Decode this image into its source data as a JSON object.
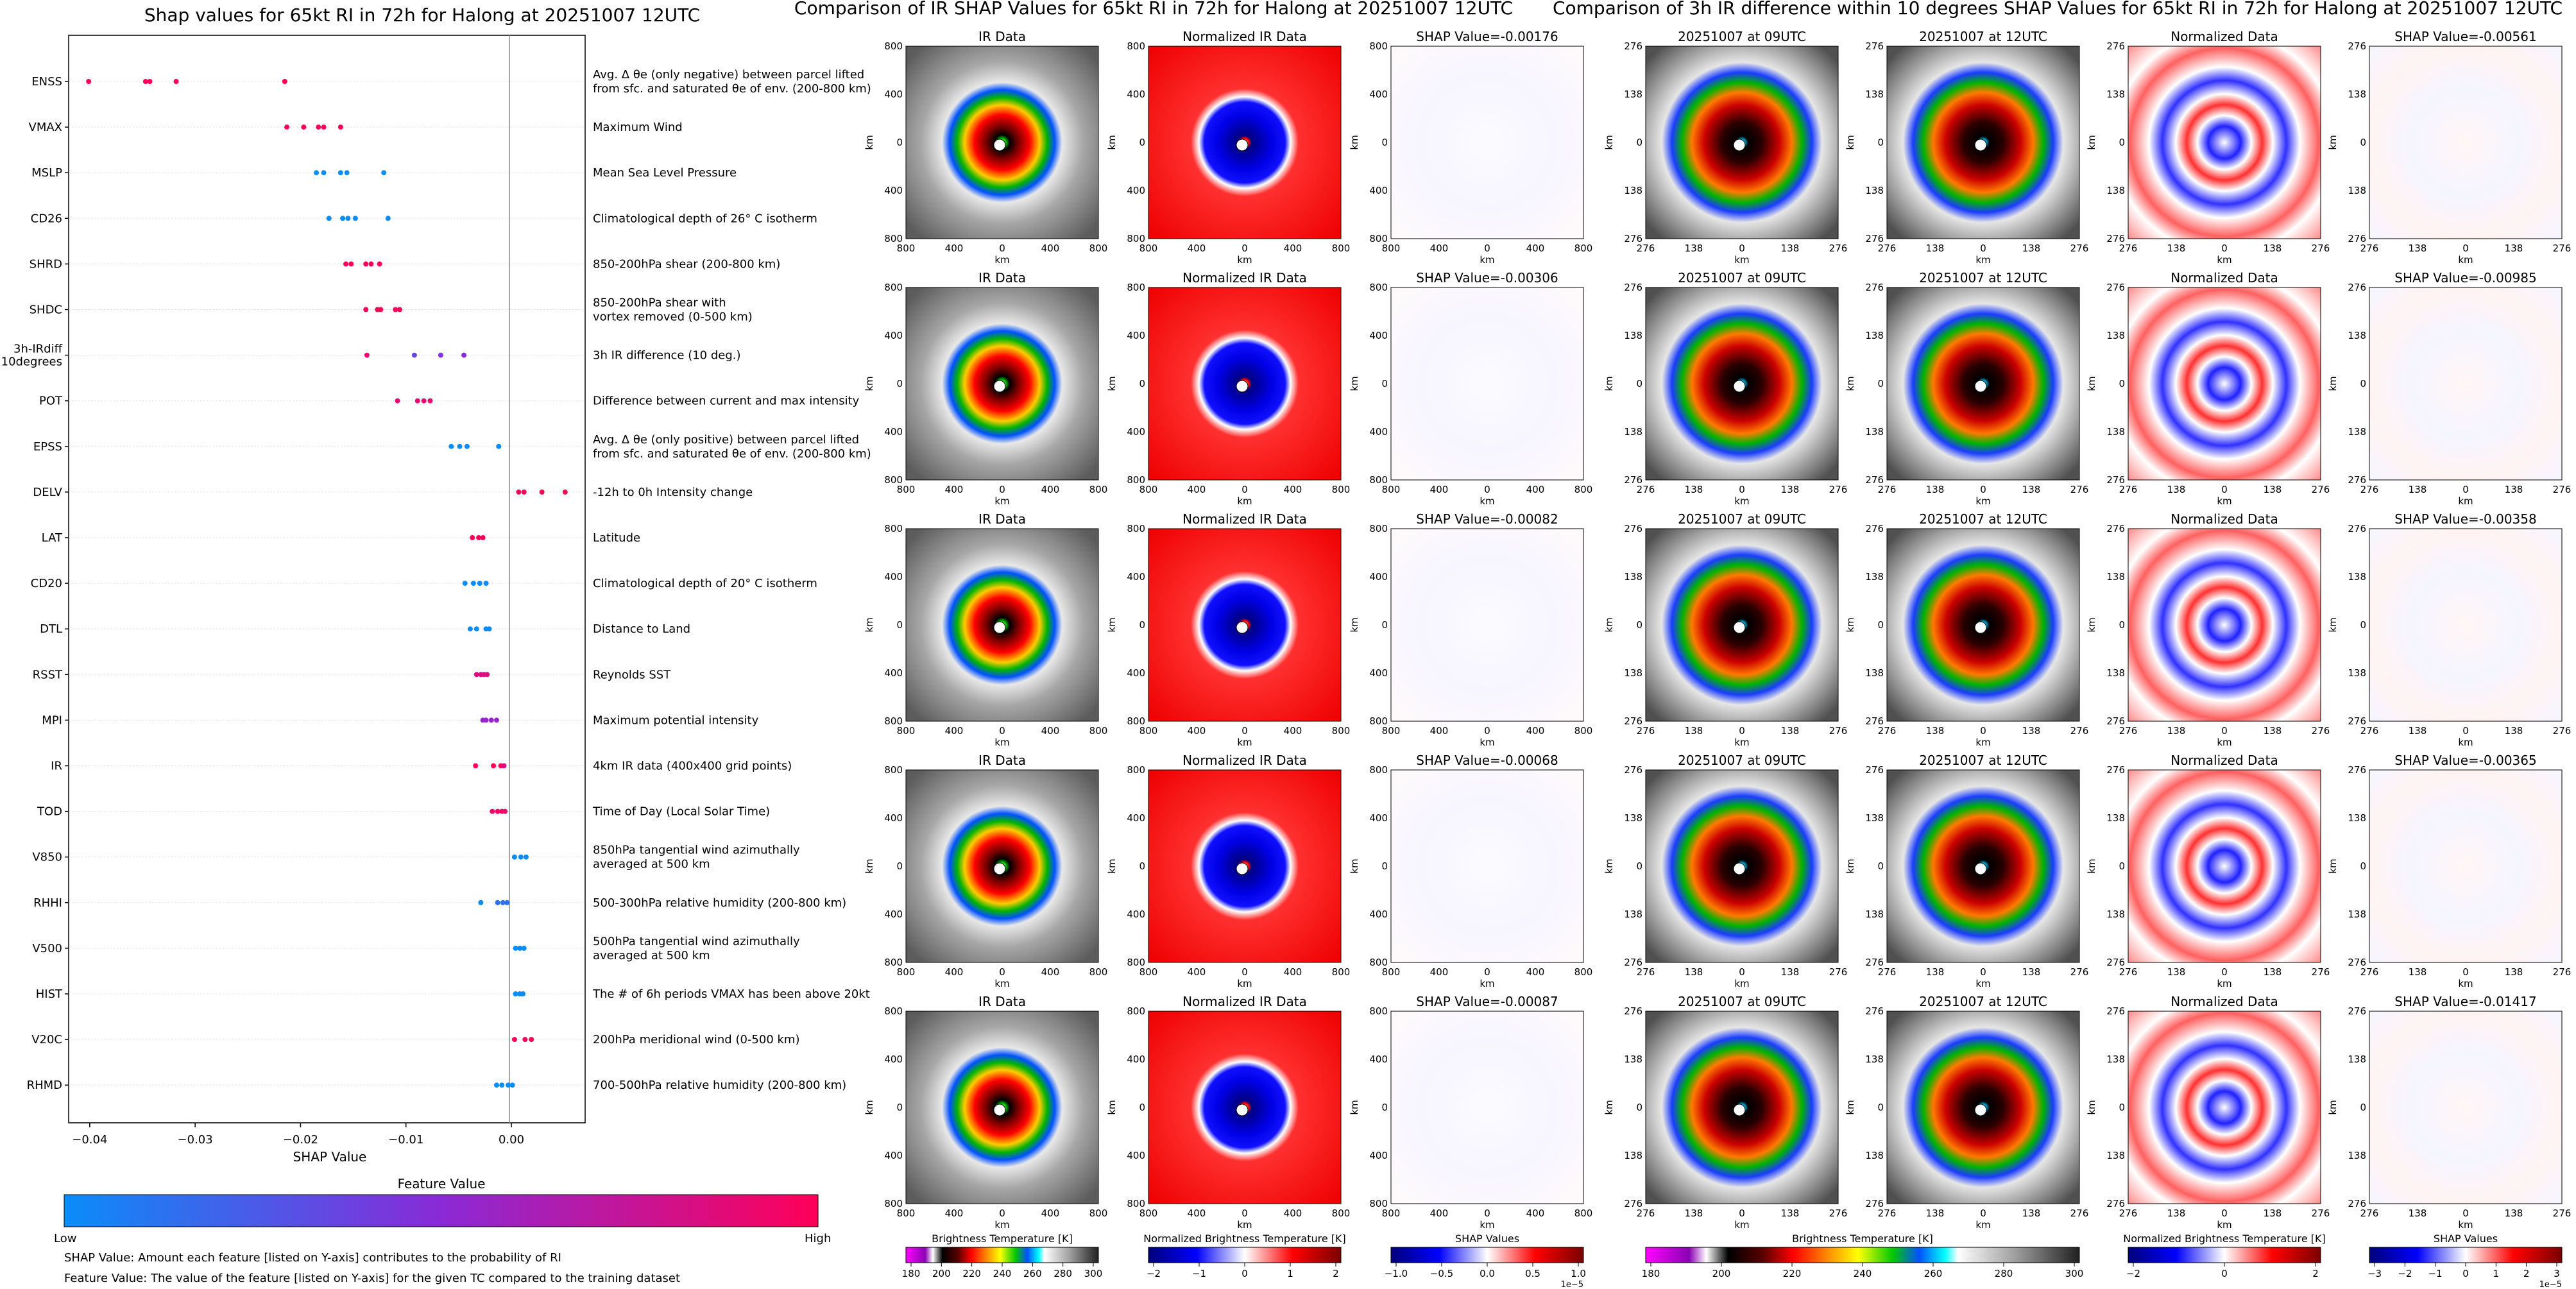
{
  "shap_summary": {
    "title": "Shap values for 65kt RI in 72h for Halong at 20251007 12UTC",
    "xlabel": "SHAP Value",
    "legend_title": "Feature Value",
    "legend_low": "Low",
    "legend_high": "High",
    "notes": [
      "SHAP Value: Amount each feature [listed on Y-axis] contributes to the probability of RI",
      "Feature Value: The value of the feature [listed on Y-axis] for the given TC compared to the training dataset"
    ]
  },
  "ir_panel": {
    "title": "Comparison of IR SHAP Values for 65kt RI in 72h for Halong at 20251007 12UTC",
    "col1_title": "IR Data",
    "col2_title": "Normalized IR Data",
    "shap_values": [
      "SHAP Value=-0.00176",
      "SHAP Value=-0.00306",
      "SHAP Value=-0.00082",
      "SHAP Value=-0.00068",
      "SHAP Value=-0.00087"
    ],
    "xticks": [
      "800",
      "400",
      "0",
      "400",
      "800"
    ],
    "yticks": [
      "800",
      "400",
      "0",
      "400",
      "800"
    ],
    "axis_label": "km",
    "cbar1_label": "Brightness Temperature [K]",
    "cbar1_ticks": [
      "180",
      "200",
      "220",
      "240",
      "260",
      "280",
      "300"
    ],
    "cbar2_label": "Normalized Brightness Temperature [K]",
    "cbar2_ticks": [
      "−2",
      "−1",
      "0",
      "1",
      "2"
    ],
    "cbar3_label": "SHAP Values",
    "cbar3_ticks": [
      "−1.0",
      "−0.5",
      "0.0",
      "0.5",
      "1.0"
    ],
    "cbar3_exp": "1e−5"
  },
  "diff_panel": {
    "title": "Comparison of 3h IR difference within 10 degrees SHAP Values for 65kt RI in 72h for Halong at 20251007 12UTC",
    "col1_title": "20251007 at 09UTC",
    "col2_title": "20251007 at 12UTC",
    "col3_title": "Normalized Data",
    "shap_values": [
      "SHAP Value=-0.00561",
      "SHAP Value=-0.00985",
      "SHAP Value=-0.00358",
      "SHAP Value=-0.00365",
      "SHAP Value=-0.01417"
    ],
    "xticks": [
      "276",
      "138",
      "0",
      "138",
      "276"
    ],
    "yticks": [
      "276",
      "138",
      "0",
      "138",
      "276"
    ],
    "axis_label": "km",
    "cbar1_label": "Brightness Temperature [K]",
    "cbar1_ticks": [
      "180",
      "200",
      "220",
      "240",
      "260",
      "280",
      "300"
    ],
    "cbar2_label": "Normalized Brightness Temperature [K]",
    "cbar2_ticks": [
      "−2",
      "0",
      "2"
    ],
    "cbar3_label": "SHAP Values",
    "cbar3_ticks": [
      "−3",
      "−2",
      "−1",
      "0",
      "1",
      "2",
      "3"
    ],
    "cbar3_exp": "1e−5"
  },
  "colors": {
    "low": "#0a8cfa",
    "mid": "#8a2ad6",
    "high": "#ff0058"
  },
  "chart_data": {
    "type": "scatter",
    "xlim": [
      -0.042,
      0.007
    ],
    "xticks": [
      -0.04,
      -0.03,
      -0.02,
      -0.01,
      0.0
    ],
    "xtick_labels": [
      "−0.04",
      "−0.03",
      "−0.02",
      "−0.01",
      "0.00"
    ],
    "features": [
      {
        "code": "ENSS",
        "desc": [
          "Avg. Δ θe (only negative) between parcel lifted",
          "from sfc. and saturated θe of env. (200-800 km)"
        ],
        "shap": [
          -0.0401,
          -0.0347,
          -0.0343,
          -0.0318,
          -0.0215
        ],
        "fv": [
          1.0,
          1.0,
          1.0,
          1.0,
          1.0
        ]
      },
      {
        "code": "VMAX",
        "desc": [
          "Maximum Wind"
        ],
        "shap": [
          -0.0213,
          -0.0197,
          -0.0183,
          -0.0178,
          -0.0162
        ],
        "fv": [
          1.0,
          1.0,
          1.0,
          1.0,
          1.0
        ]
      },
      {
        "code": "MSLP",
        "desc": [
          "Mean Sea Level Pressure"
        ],
        "shap": [
          -0.0185,
          -0.0178,
          -0.0162,
          -0.0156,
          -0.0121
        ],
        "fv": [
          0.0,
          0.0,
          0.0,
          0.0,
          0.0
        ]
      },
      {
        "code": "CD26",
        "desc": [
          "Climatological depth of 26° C isotherm"
        ],
        "shap": [
          -0.0173,
          -0.016,
          -0.0155,
          -0.0148,
          -0.0117
        ],
        "fv": [
          0.0,
          0.0,
          0.0,
          0.0,
          0.0
        ]
      },
      {
        "code": "SHRD",
        "desc": [
          "850-200hPa shear (200-800 km)"
        ],
        "shap": [
          -0.0157,
          -0.0152,
          -0.0138,
          -0.0133,
          -0.0125
        ],
        "fv": [
          1.0,
          1.0,
          1.0,
          1.0,
          1.0
        ]
      },
      {
        "code": "SHDC",
        "desc": [
          "850-200hPa shear with",
          "vortex removed (0-500 km)"
        ],
        "shap": [
          -0.0138,
          -0.0127,
          -0.0124,
          -0.011,
          -0.0106
        ],
        "fv": [
          1.0,
          1.0,
          1.0,
          1.0,
          1.0
        ]
      },
      {
        "code": "3h-IRdiff 10degrees",
        "desc": [
          "3h IR difference (10 deg.)"
        ],
        "shap": [
          -0.0137,
          -0.0092,
          -0.0067,
          -0.0045
        ],
        "fv": [
          0.9,
          0.35,
          0.45,
          0.5
        ]
      },
      {
        "code": "POT",
        "desc": [
          "Difference between current and max intensity"
        ],
        "shap": [
          -0.0108,
          -0.0089,
          -0.0083,
          -0.0077
        ],
        "fv": [
          0.9,
          0.9,
          0.9,
          0.9
        ]
      },
      {
        "code": "EPSS",
        "desc": [
          "Avg. Δ θe (only positive) between parcel lifted",
          "from sfc. and saturated θe of env. (200-800 km)"
        ],
        "shap": [
          -0.0057,
          -0.0049,
          -0.0042,
          -0.0012
        ],
        "fv": [
          0.0,
          0.0,
          0.0,
          0.0
        ]
      },
      {
        "code": "DELV",
        "desc": [
          "-12h to 0h Intensity change"
        ],
        "shap": [
          0.0007,
          0.0012,
          0.0029,
          0.0051
        ],
        "fv": [
          1.0,
          1.0,
          1.0,
          1.0
        ]
      },
      {
        "code": "LAT",
        "desc": [
          "Latitude"
        ],
        "shap": [
          -0.0037,
          -0.0031,
          -0.0027
        ],
        "fv": [
          1.0,
          1.0,
          1.0
        ]
      },
      {
        "code": "CD20",
        "desc": [
          "Climatological depth of 20° C isotherm"
        ],
        "shap": [
          -0.0044,
          -0.0036,
          -0.003,
          -0.0024
        ],
        "fv": [
          0.0,
          0.0,
          0.0,
          0.0
        ]
      },
      {
        "code": "DTL",
        "desc": [
          "Distance to Land"
        ],
        "shap": [
          -0.0039,
          -0.0033,
          -0.0024,
          -0.0021
        ],
        "fv": [
          0.0,
          0.0,
          0.0,
          0.0
        ]
      },
      {
        "code": "RSST",
        "desc": [
          "Reynolds SST"
        ],
        "shap": [
          -0.0033,
          -0.0029,
          -0.0026,
          -0.0023
        ],
        "fv": [
          0.85,
          0.85,
          0.85,
          0.85
        ]
      },
      {
        "code": "MPI",
        "desc": [
          "Maximum potential intensity"
        ],
        "shap": [
          -0.0027,
          -0.0024,
          -0.0019,
          -0.0014
        ],
        "fv": [
          0.55,
          0.55,
          0.55,
          0.55
        ]
      },
      {
        "code": "IR",
        "desc": [
          "4km IR data (400x400 grid points)"
        ],
        "shap": [
          -0.0034,
          -0.0017,
          -0.001,
          -0.0007
        ],
        "fv": [
          1.0,
          1.0,
          1.0,
          0.85
        ]
      },
      {
        "code": "TOD",
        "desc": [
          "Time of Day (Local Solar Time)"
        ],
        "shap": [
          -0.0018,
          -0.0013,
          -0.0009,
          -0.0006
        ],
        "fv": [
          0.95,
          0.95,
          0.95,
          0.95
        ]
      },
      {
        "code": "V850",
        "desc": [
          "850hPa tangential wind azimuthally",
          "averaged at 500 km"
        ],
        "shap": [
          0.0003,
          0.0009,
          0.0014
        ],
        "fv": [
          0.0,
          0.0,
          0.0
        ]
      },
      {
        "code": "RHHI",
        "desc": [
          "500-300hPa relative humidity (200-800 km)"
        ],
        "shap": [
          -0.0029,
          -0.0013,
          -0.0008,
          -0.0004
        ],
        "fv": [
          0.0,
          0.15,
          0.15,
          0.15
        ]
      },
      {
        "code": "V500",
        "desc": [
          "500hPa tangential wind azimuthally",
          "averaged at 500 km"
        ],
        "shap": [
          0.0004,
          0.0008,
          0.0012
        ],
        "fv": [
          0.0,
          0.0,
          0.0
        ]
      },
      {
        "code": "HIST",
        "desc": [
          "The # of 6h periods VMAX has been above 20kt"
        ],
        "shap": [
          0.0004,
          0.0008,
          0.0011
        ],
        "fv": [
          0.0,
          0.0,
          0.0
        ]
      },
      {
        "code": "V20C",
        "desc": [
          "200hPa meridional wind (0-500 km)"
        ],
        "shap": [
          0.0003,
          0.0013,
          0.0019
        ],
        "fv": [
          1.0,
          1.0,
          1.0
        ]
      },
      {
        "code": "RHMD",
        "desc": [
          "700-500hPa relative humidity (200-800 km)"
        ],
        "shap": [
          -0.0014,
          -0.0009,
          -0.0003,
          0.0001
        ],
        "fv": [
          0.0,
          0.0,
          0.0,
          0.0
        ]
      }
    ]
  }
}
